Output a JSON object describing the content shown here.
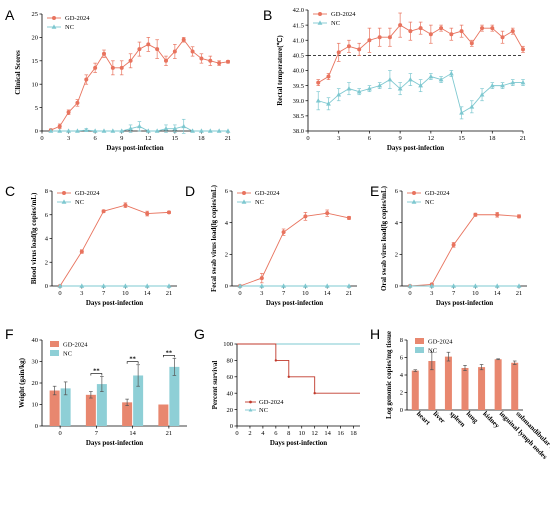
{
  "colors": {
    "gd": "#E8735E",
    "nc": "#7EC8D0",
    "gd_bar": "#E8876F",
    "nc_bar": "#8ECFD6",
    "red_line": "#C0392B"
  },
  "chart_data": [
    {
      "id": "A",
      "panel_letter": "A",
      "type": "line",
      "xlabel": "Days post-infection",
      "ylabel": "Clinical Scores",
      "xlim": [
        0,
        21
      ],
      "ylim": [
        0,
        25
      ],
      "xticks": [
        0,
        3,
        6,
        9,
        12,
        15,
        18,
        21
      ],
      "yticks": [
        0,
        5,
        10,
        15,
        20,
        25
      ],
      "legend_position": "top-left",
      "series": [
        {
          "name": "GD-2024",
          "color_key": "gd",
          "marker": "circle",
          "x": [
            1,
            2,
            3,
            4,
            5,
            6,
            7,
            8,
            9,
            10,
            11,
            12,
            13,
            14,
            15,
            16,
            17,
            18,
            19,
            20,
            21
          ],
          "y": [
            0.2,
            1,
            4,
            6,
            11,
            13.5,
            16.5,
            13.5,
            13.5,
            15,
            17.5,
            18.5,
            17.5,
            15,
            17,
            19.5,
            17,
            15.5,
            15,
            14.5,
            14.8
          ],
          "err": [
            0.2,
            0.5,
            0.5,
            0.7,
            1,
            1,
            0.8,
            1.5,
            1.5,
            1.5,
            1.5,
            1.5,
            2,
            1,
            1.5,
            0.5,
            1,
            1,
            1,
            0.5,
            0.3
          ]
        },
        {
          "name": "NC",
          "color_key": "nc",
          "marker": "triangle",
          "x": [
            1,
            2,
            3,
            4,
            5,
            6,
            7,
            8,
            9,
            10,
            11,
            12,
            13,
            14,
            15,
            16,
            17,
            18,
            19,
            20,
            21
          ],
          "y": [
            0,
            0,
            0,
            0,
            0.2,
            0,
            0,
            0,
            0,
            0.5,
            1,
            0,
            0,
            0.5,
            0.5,
            1,
            0,
            0,
            0,
            0,
            0
          ],
          "err": [
            0,
            0,
            0,
            0,
            0.3,
            0,
            0,
            0,
            0,
            0.8,
            1,
            0,
            0,
            0.8,
            0.8,
            1.5,
            0,
            0,
            0,
            0,
            0
          ]
        }
      ]
    },
    {
      "id": "B",
      "panel_letter": "B",
      "type": "line",
      "xlabel": "Days post-infection",
      "ylabel": "Rectal temperature(℃)",
      "xlim": [
        0,
        21
      ],
      "ylim": [
        38.0,
        42.0
      ],
      "xticks": [
        0,
        3,
        6,
        9,
        12,
        15,
        18,
        21
      ],
      "yticks": [
        38.0,
        38.5,
        39.0,
        39.5,
        40.0,
        40.5,
        41.0,
        41.5,
        42.0
      ],
      "ytick_labels": [
        "38.0",
        "38.5",
        "39.0",
        "39.5",
        "40.0",
        "40.5",
        "41.0",
        "41.5",
        "42.0"
      ],
      "reference_line": 40.5,
      "legend_position": "top-left",
      "series": [
        {
          "name": "GD-2024",
          "color_key": "gd",
          "marker": "circle",
          "x": [
            1,
            2,
            3,
            4,
            5,
            6,
            7,
            8,
            9,
            10,
            11,
            12,
            13,
            14,
            15,
            16,
            17,
            18,
            19,
            20,
            21
          ],
          "y": [
            39.6,
            39.8,
            40.6,
            40.8,
            40.7,
            41.0,
            41.1,
            41.1,
            41.5,
            41.3,
            41.4,
            41.2,
            41.4,
            41.2,
            41.3,
            40.9,
            41.4,
            41.4,
            41.1,
            41.3,
            40.7
          ],
          "err": [
            0.1,
            0.1,
            0.3,
            0.2,
            0.2,
            0.4,
            0.3,
            0.3,
            0.4,
            0.3,
            0.2,
            0.3,
            0.1,
            0.2,
            0.2,
            0.1,
            0.1,
            0.1,
            0.2,
            0.1,
            0.1
          ]
        },
        {
          "name": "NC",
          "color_key": "nc",
          "marker": "triangle",
          "x": [
            1,
            2,
            3,
            4,
            5,
            6,
            7,
            8,
            9,
            10,
            11,
            12,
            13,
            14,
            15,
            16,
            17,
            18,
            19,
            20,
            21
          ],
          "y": [
            39.0,
            38.9,
            39.2,
            39.4,
            39.3,
            39.4,
            39.5,
            39.7,
            39.4,
            39.7,
            39.5,
            39.8,
            39.7,
            39.9,
            38.6,
            38.8,
            39.2,
            39.5,
            39.5,
            39.6,
            39.6
          ],
          "err": [
            0.3,
            0.2,
            0.2,
            0.2,
            0.1,
            0.1,
            0.1,
            0.3,
            0.2,
            0.2,
            0.2,
            0.1,
            0.1,
            0.1,
            0.2,
            0.2,
            0.2,
            0.1,
            0.1,
            0.1,
            0.1
          ]
        }
      ]
    },
    {
      "id": "C",
      "panel_letter": "C",
      "type": "line",
      "xlabel": "Days post-infection",
      "ylabel": "Blood virus load(lg copies/mL)",
      "x_categories": [
        "0",
        "3",
        "7",
        "10",
        "14",
        "21"
      ],
      "ylim": [
        0,
        8
      ],
      "yticks": [
        0,
        2,
        4,
        6,
        8
      ],
      "legend_position": "top-left",
      "series": [
        {
          "name": "GD-2024",
          "color_key": "gd",
          "marker": "circle",
          "y": [
            0,
            2.9,
            6.3,
            6.8,
            6.1,
            6.2
          ],
          "err": [
            0,
            0.15,
            0.1,
            0.2,
            0.2,
            0.1
          ]
        },
        {
          "name": "NC",
          "color_key": "nc",
          "marker": "triangle",
          "y": [
            0,
            0,
            0,
            0,
            0,
            0
          ],
          "err": [
            0,
            0,
            0,
            0,
            0,
            0
          ]
        }
      ]
    },
    {
      "id": "D",
      "panel_letter": "D",
      "type": "line",
      "xlabel": "Days post-infection",
      "ylabel": "Fecal swab virus load(lg copies/mL)",
      "x_categories": [
        "0",
        "3",
        "7",
        "10",
        "14",
        "21"
      ],
      "ylim": [
        0,
        6
      ],
      "yticks": [
        0,
        2,
        4,
        6
      ],
      "legend_position": "top-left",
      "series": [
        {
          "name": "GD-2024",
          "color_key": "gd",
          "marker": "circle",
          "y": [
            0,
            0.5,
            3.4,
            4.4,
            4.6,
            4.3
          ],
          "err": [
            0,
            0.3,
            0.2,
            0.25,
            0.2,
            0.1
          ]
        },
        {
          "name": "NC",
          "color_key": "nc",
          "marker": "triangle",
          "y": [
            0,
            0,
            0,
            0,
            0,
            0
          ],
          "err": [
            0,
            0,
            0,
            0,
            0,
            0
          ]
        }
      ]
    },
    {
      "id": "E",
      "panel_letter": "E",
      "type": "line",
      "xlabel": "Days post-infection",
      "ylabel": "Oral swab virus load(lg copies/mL)",
      "x_categories": [
        "0",
        "3",
        "7",
        "10",
        "14",
        "21"
      ],
      "ylim": [
        0,
        6
      ],
      "yticks": [
        0,
        2,
        4,
        6
      ],
      "legend_position": "top-left",
      "series": [
        {
          "name": "GD-2024",
          "color_key": "gd",
          "marker": "circle",
          "y": [
            0,
            0.1,
            2.6,
            4.5,
            4.5,
            4.4
          ],
          "err": [
            0,
            0.05,
            0.15,
            0.1,
            0.15,
            0.1
          ]
        },
        {
          "name": "NC",
          "color_key": "nc",
          "marker": "triangle",
          "y": [
            0,
            0,
            0,
            0,
            0,
            0
          ],
          "err": [
            0,
            0,
            0,
            0,
            0,
            0
          ]
        }
      ]
    },
    {
      "id": "F",
      "panel_letter": "F",
      "type": "bar",
      "xlabel": "Days post-infection",
      "ylabel": "Weight (gain/kg)",
      "categories": [
        "0",
        "7",
        "14",
        "21"
      ],
      "ylim": [
        0,
        40
      ],
      "yticks": [
        0,
        10,
        20,
        30,
        40
      ],
      "legend_position": "top-left",
      "significance": [
        "",
        "**",
        "**",
        "**"
      ],
      "series": [
        {
          "name": "GD-2024",
          "color_key": "gd_bar",
          "values": [
            16.5,
            14.5,
            11,
            10
          ],
          "err": [
            2,
            1.5,
            1.5,
            0
          ]
        },
        {
          "name": "NC",
          "color_key": "nc_bar",
          "values": [
            17.5,
            19.5,
            23.5,
            27.5
          ],
          "err": [
            3,
            3.5,
            5,
            4
          ]
        }
      ]
    },
    {
      "id": "G",
      "panel_letter": "G",
      "type": "line",
      "xlabel": "Days post-infection",
      "ylabel": "Percent survival",
      "xlim": [
        0,
        19
      ],
      "ylim": [
        0,
        100
      ],
      "xticks": [
        0,
        2,
        4,
        6,
        8,
        10,
        12,
        14,
        16,
        18
      ],
      "yticks": [
        0,
        20,
        40,
        60,
        80,
        100
      ],
      "legend_position": "bottom-left",
      "series": [
        {
          "name": "GD-2024",
          "color_key": "red_line",
          "style": "step",
          "x": [
            0,
            6,
            6,
            8,
            8,
            12,
            12,
            19
          ],
          "y": [
            100,
            100,
            80,
            80,
            60,
            60,
            40,
            40
          ],
          "censor_marks": [
            6,
            8,
            12
          ]
        },
        {
          "name": "NC",
          "color_key": "nc",
          "style": "step",
          "x": [
            0,
            19
          ],
          "y": [
            100,
            100
          ],
          "censor_marks": []
        }
      ]
    },
    {
      "id": "H",
      "panel_letter": "H",
      "type": "bar",
      "xlabel": "",
      "ylabel": "Log genomic copies/mg tissue",
      "categories": [
        "heart",
        "liver",
        "spleen",
        "lung",
        "kidney",
        "inguinal lymph nodes",
        "submandibular lymph nodes"
      ],
      "ylim": [
        0,
        8
      ],
      "yticks": [
        0,
        2,
        4,
        6,
        8
      ],
      "legend_position": "top-left",
      "series": [
        {
          "name": "GD-2024",
          "color_key": "gd_bar",
          "values": [
            4.5,
            5.6,
            6.1,
            4.8,
            4.9,
            5.8,
            5.4
          ],
          "err": [
            0.1,
            1.0,
            0.5,
            0.3,
            0.3,
            0.05,
            0.2
          ]
        },
        {
          "name": "NC",
          "color_key": "nc_bar",
          "values": [
            0,
            0,
            0,
            0,
            0,
            0,
            0
          ],
          "err": [
            0,
            0,
            0,
            0,
            0,
            0,
            0
          ]
        }
      ]
    }
  ]
}
